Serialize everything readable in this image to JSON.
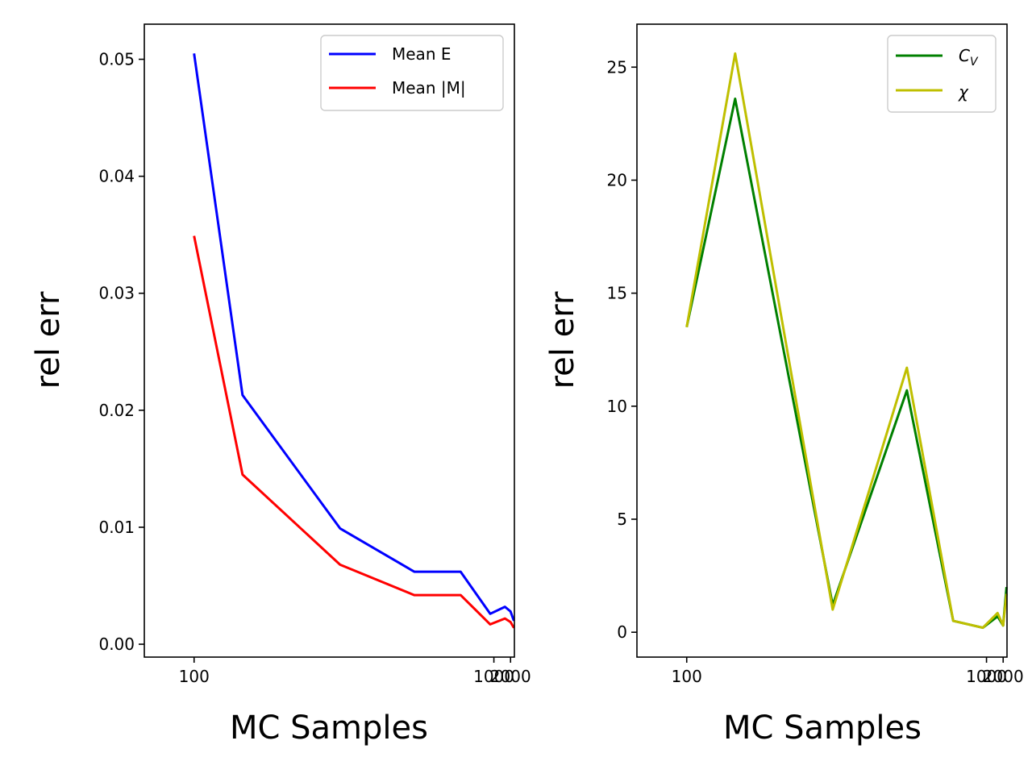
{
  "chart_data": [
    {
      "type": "line",
      "xlabel": "MC Samples",
      "ylabel": "rel err",
      "x_scale": "reciprocal",
      "xlim": [
        87.0,
        2600.0
      ],
      "ylim": [
        -0.0011,
        0.053
      ],
      "xticks": [
        100,
        1000,
        2000
      ],
      "xtick_labels": [
        "100",
        "1000",
        "2000"
      ],
      "yticks": [
        0.0,
        0.01,
        0.02,
        0.03,
        0.04,
        0.05
      ],
      "ytick_labels": [
        "0.00",
        "0.01",
        "0.02",
        "0.03",
        "0.04",
        "0.05"
      ],
      "legend_position": "top-right",
      "x": [
        100,
        117,
        178,
        295,
        500,
        900,
        1500,
        2000,
        2500
      ],
      "series": [
        {
          "name": "Mean E",
          "color": "#0000ff",
          "values": [
            0.0505,
            0.0213,
            0.0099,
            0.0062,
            0.0062,
            0.0026,
            0.0032,
            0.0028,
            0.002
          ]
        },
        {
          "name": "Mean |M|",
          "color": "#ff0000",
          "values": [
            0.0349,
            0.0145,
            0.0068,
            0.0042,
            0.0042,
            0.0017,
            0.0022,
            0.0019,
            0.0014
          ]
        }
      ]
    },
    {
      "type": "line",
      "xlabel": "MC Samples",
      "ylabel": "rel err",
      "x_scale": "reciprocal",
      "xlim": [
        87.0,
        2600.0
      ],
      "ylim": [
        -1.1,
        26.9
      ],
      "xticks": [
        100,
        1000,
        2000
      ],
      "xtick_labels": [
        "100",
        "1000",
        "2000"
      ],
      "yticks": [
        0,
        5,
        10,
        15,
        20,
        25
      ],
      "ytick_labels": [
        "0",
        "5",
        "10",
        "15",
        "20",
        "25"
      ],
      "legend_position": "top-right",
      "x": [
        100,
        117,
        178,
        295,
        500,
        900,
        1500,
        2000,
        2500
      ],
      "series": [
        {
          "name": "C",
          "subscript": "V",
          "color": "#008000",
          "values": [
            13.5,
            23.6,
            1.2,
            10.7,
            0.5,
            0.2,
            0.7,
            0.3,
            2.0
          ]
        },
        {
          "name": "χ",
          "color": "#bfbf00",
          "values": [
            13.5,
            25.6,
            1.0,
            11.7,
            0.5,
            0.2,
            0.85,
            0.3,
            1.7
          ]
        }
      ]
    }
  ]
}
